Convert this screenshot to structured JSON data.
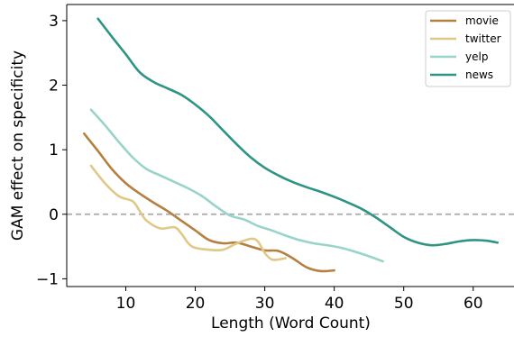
{
  "chart_data": {
    "type": "line",
    "xlabel": "Length (Word Count)",
    "ylabel": "GAM effect on specificity",
    "xlim": [
      1.5,
      66
    ],
    "ylim": [
      -1.12,
      3.25
    ],
    "xticks": [
      {
        "value": 10,
        "label": "10"
      },
      {
        "value": 20,
        "label": "20"
      },
      {
        "value": 30,
        "label": "30"
      },
      {
        "value": 40,
        "label": "40"
      },
      {
        "value": 50,
        "label": "50"
      },
      {
        "value": 60,
        "label": "60"
      }
    ],
    "yticks": [
      {
        "value": -1,
        "label": "−1"
      },
      {
        "value": 0,
        "label": "0"
      },
      {
        "value": 1,
        "label": "1"
      },
      {
        "value": 2,
        "label": "2"
      },
      {
        "value": 3,
        "label": "3"
      }
    ],
    "reference_line": {
      "y": 0,
      "style": "dashed",
      "color": "#aaaaaa"
    },
    "grid": false,
    "legend_position": "top-right",
    "series": [
      {
        "name": "movie",
        "color": "#b5803f",
        "points": [
          [
            4,
            1.25
          ],
          [
            6,
            0.98
          ],
          [
            8,
            0.7
          ],
          [
            10,
            0.48
          ],
          [
            12,
            0.32
          ],
          [
            14,
            0.18
          ],
          [
            16,
            0.05
          ],
          [
            18,
            -0.1
          ],
          [
            20,
            -0.25
          ],
          [
            22,
            -0.4
          ],
          [
            24,
            -0.45
          ],
          [
            26,
            -0.44
          ],
          [
            28,
            -0.5
          ],
          [
            30,
            -0.56
          ],
          [
            32,
            -0.57
          ],
          [
            34,
            -0.68
          ],
          [
            36,
            -0.82
          ],
          [
            38,
            -0.88
          ],
          [
            40,
            -0.87
          ]
        ]
      },
      {
        "name": "twitter",
        "color": "#e0c888",
        "points": [
          [
            5,
            0.75
          ],
          [
            7,
            0.48
          ],
          [
            9,
            0.28
          ],
          [
            11,
            0.2
          ],
          [
            12,
            0.05
          ],
          [
            13,
            -0.1
          ],
          [
            15,
            -0.22
          ],
          [
            17,
            -0.2
          ],
          [
            18,
            -0.3
          ],
          [
            19,
            -0.45
          ],
          [
            20,
            -0.52
          ],
          [
            22,
            -0.55
          ],
          [
            24,
            -0.55
          ],
          [
            26,
            -0.45
          ],
          [
            28,
            -0.38
          ],
          [
            29,
            -0.42
          ],
          [
            30,
            -0.6
          ],
          [
            31,
            -0.7
          ],
          [
            32,
            -0.7
          ],
          [
            33,
            -0.68
          ]
        ]
      },
      {
        "name": "yelp",
        "color": "#98d4ca",
        "points": [
          [
            5,
            1.62
          ],
          [
            7,
            1.38
          ],
          [
            9,
            1.12
          ],
          [
            11,
            0.88
          ],
          [
            13,
            0.7
          ],
          [
            15,
            0.6
          ],
          [
            17,
            0.5
          ],
          [
            19,
            0.4
          ],
          [
            21,
            0.28
          ],
          [
            23,
            0.12
          ],
          [
            25,
            -0.02
          ],
          [
            27,
            -0.08
          ],
          [
            29,
            -0.18
          ],
          [
            31,
            -0.25
          ],
          [
            33,
            -0.33
          ],
          [
            35,
            -0.4
          ],
          [
            37,
            -0.45
          ],
          [
            39,
            -0.48
          ],
          [
            41,
            -0.52
          ],
          [
            43,
            -0.58
          ],
          [
            45,
            -0.65
          ],
          [
            47,
            -0.73
          ]
        ]
      },
      {
        "name": "news",
        "color": "#2e9484",
        "points": [
          [
            6,
            3.03
          ],
          [
            8,
            2.75
          ],
          [
            10,
            2.48
          ],
          [
            12,
            2.2
          ],
          [
            14,
            2.05
          ],
          [
            16,
            1.95
          ],
          [
            18,
            1.85
          ],
          [
            20,
            1.7
          ],
          [
            22,
            1.52
          ],
          [
            24,
            1.3
          ],
          [
            26,
            1.08
          ],
          [
            28,
            0.88
          ],
          [
            30,
            0.72
          ],
          [
            32,
            0.6
          ],
          [
            34,
            0.5
          ],
          [
            36,
            0.42
          ],
          [
            38,
            0.35
          ],
          [
            40,
            0.27
          ],
          [
            42,
            0.18
          ],
          [
            44,
            0.08
          ],
          [
            46,
            -0.05
          ],
          [
            48,
            -0.2
          ],
          [
            50,
            -0.35
          ],
          [
            52,
            -0.44
          ],
          [
            54,
            -0.48
          ],
          [
            56,
            -0.46
          ],
          [
            58,
            -0.42
          ],
          [
            60,
            -0.4
          ],
          [
            62,
            -0.41
          ],
          [
            63.5,
            -0.44
          ]
        ]
      }
    ]
  }
}
